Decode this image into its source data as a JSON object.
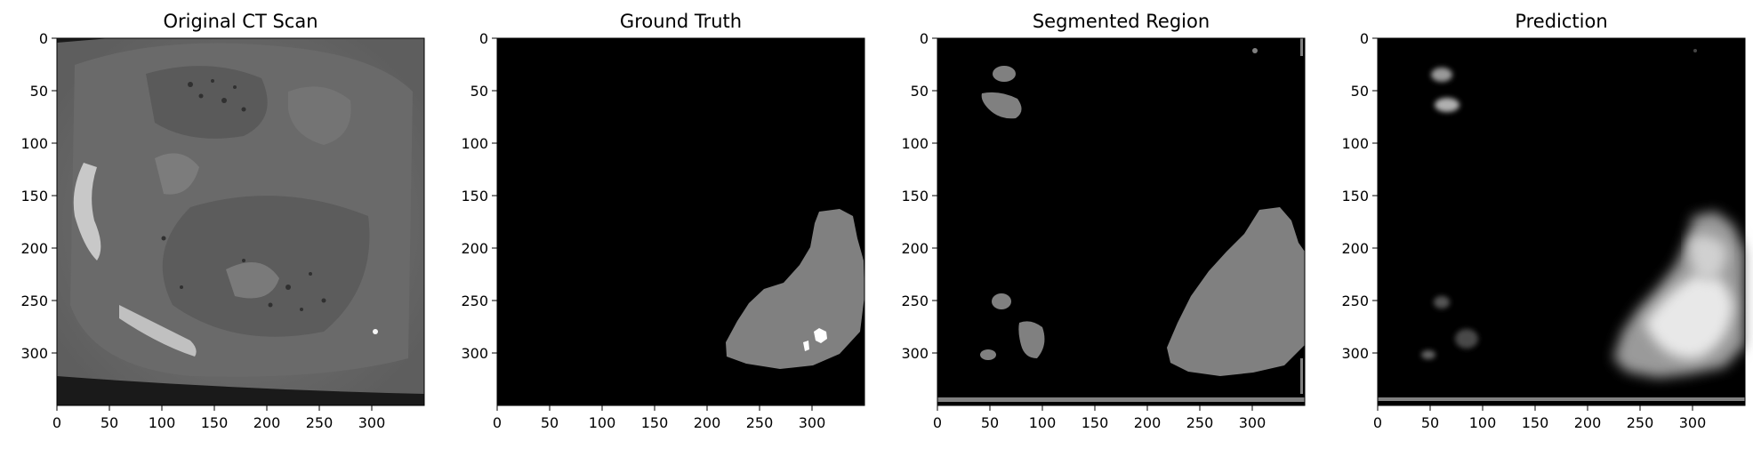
{
  "figure": {
    "panels": [
      {
        "title": "Original CT Scan",
        "kind": "ct",
        "x_ticks": [
          "0",
          "50",
          "100",
          "150",
          "200",
          "250",
          "300"
        ],
        "y_ticks": [
          "0",
          "50",
          "100",
          "150",
          "200",
          "250",
          "300"
        ]
      },
      {
        "title": "Ground Truth",
        "kind": "ground-truth",
        "x_ticks": [
          "0",
          "50",
          "100",
          "150",
          "200",
          "250",
          "300"
        ],
        "y_ticks": [
          "0",
          "50",
          "100",
          "150",
          "200",
          "250",
          "300"
        ]
      },
      {
        "title": "Segmented Region",
        "kind": "segmented",
        "x_ticks": [
          "0",
          "50",
          "100",
          "150",
          "200",
          "250",
          "300"
        ],
        "y_ticks": [
          "0",
          "50",
          "100",
          "150",
          "200",
          "250",
          "300"
        ]
      },
      {
        "title": "Prediction",
        "kind": "prediction",
        "x_ticks": [
          "0",
          "50",
          "100",
          "150",
          "200",
          "250",
          "300"
        ],
        "y_ticks": [
          "0",
          "50",
          "100",
          "150",
          "200",
          "250",
          "300"
        ]
      }
    ]
  }
}
